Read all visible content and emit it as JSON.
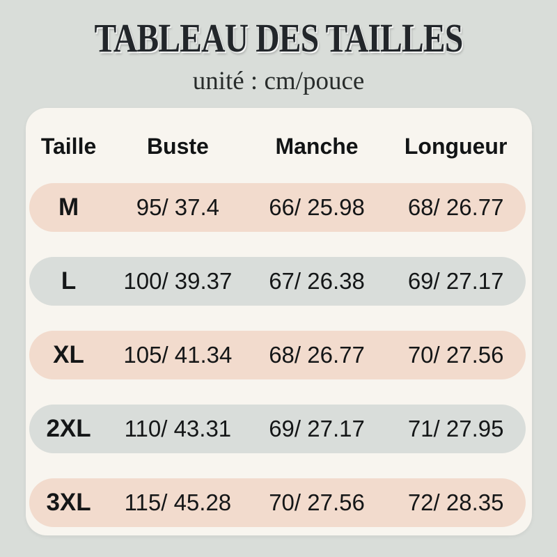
{
  "header": {
    "title": "TABLEAU DES TAILLES",
    "subtitle": "unité : cm/pouce"
  },
  "table": {
    "columns": [
      "Taille",
      "Buste",
      "Manche",
      "Longueur"
    ],
    "rows": [
      {
        "size": "M",
        "buste": "95/ 37.4",
        "manche": "66/ 25.98",
        "longueur": "68/ 26.77"
      },
      {
        "size": "L",
        "buste": "100/ 39.37",
        "manche": "67/ 26.38",
        "longueur": "69/ 27.17"
      },
      {
        "size": "XL",
        "buste": "105/ 41.34",
        "manche": "68/ 26.77",
        "longueur": "70/ 27.56"
      },
      {
        "size": "2XL",
        "buste": "110/ 43.31",
        "manche": "69/ 27.17",
        "longueur": "71/ 27.95"
      },
      {
        "size": "3XL",
        "buste": "115/ 45.28",
        "manche": "70/ 27.56",
        "longueur": "72/ 28.35"
      }
    ]
  },
  "colors": {
    "page_background": "#d9ddd9",
    "panel_background": "#f8f5ef",
    "row_pink": "#f2dbcd",
    "row_gray": "#d9ddda",
    "text": "#1c1f22"
  },
  "chart_data": {
    "type": "table",
    "title": "TABLEAU DES TAILLES",
    "unit": "cm/pouce",
    "columns": [
      "Taille",
      "Buste",
      "Manche",
      "Longueur"
    ],
    "rows": [
      [
        "M",
        "95/ 37.4",
        "66/ 25.98",
        "68/ 26.77"
      ],
      [
        "L",
        "100/ 39.37",
        "67/ 26.38",
        "69/ 27.17"
      ],
      [
        "XL",
        "105/ 41.34",
        "68/ 26.77",
        "70/ 27.56"
      ],
      [
        "2XL",
        "110/ 43.31",
        "69/ 27.17",
        "71/ 27.95"
      ],
      [
        "3XL",
        "115/ 45.28",
        "70/ 27.56",
        "72/ 28.35"
      ]
    ]
  }
}
